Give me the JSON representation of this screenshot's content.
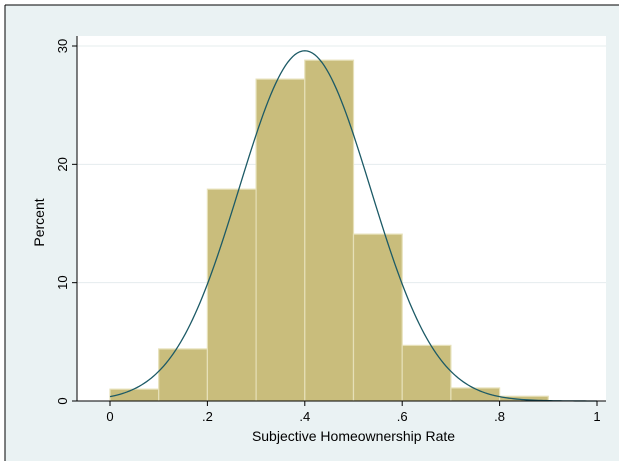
{
  "chart_data": {
    "type": "bar",
    "histogram": true,
    "bin_edges": [
      0.0,
      0.1,
      0.2,
      0.3,
      0.4,
      0.5,
      0.6,
      0.7,
      0.8,
      0.9
    ],
    "values": [
      1.0,
      4.4,
      17.9,
      27.2,
      28.8,
      14.1,
      4.7,
      1.1,
      0.4
    ],
    "overlay": {
      "type": "line",
      "curve": "normal density",
      "mean": 0.4,
      "sd": 0.135,
      "peak": 29.6
    },
    "xlabel": "Subjective Homeownership Rate",
    "ylabel": "Percent",
    "xlim": [
      0,
      1
    ],
    "ylim": [
      0,
      30
    ],
    "xticks": [
      0,
      0.2,
      0.4,
      0.6,
      0.8,
      1
    ],
    "xtick_labels": [
      "0",
      ".2",
      ".4",
      ".6",
      ".8",
      "1"
    ],
    "yticks": [
      0,
      10,
      20,
      30
    ],
    "ytick_labels": [
      "0",
      "10",
      "20",
      "30"
    ],
    "grid": "horizontal",
    "colors": {
      "bar_fill": "#c9bd7c",
      "bar_edge": "#e6e0b8",
      "curve": "#1c5a66",
      "outer_bg": "#eaf2f3",
      "plot_bg": "#ffffff",
      "grid": "#e5ecee"
    }
  }
}
